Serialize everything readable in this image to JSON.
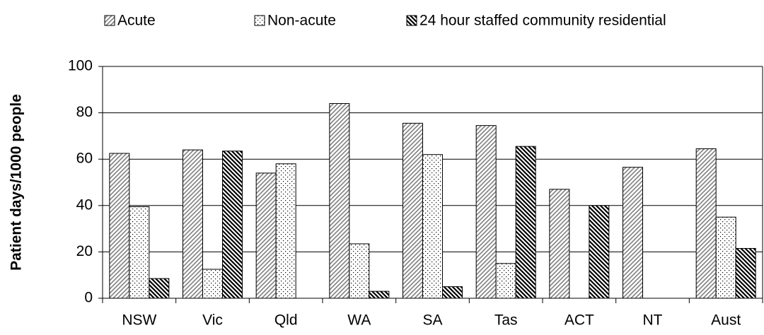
{
  "chart_data": {
    "type": "bar",
    "y_label": "Patient days/1000 people",
    "categories": [
      "NSW",
      "Vic",
      "Qld",
      "WA",
      "SA",
      "Tas",
      "ACT",
      "NT",
      "Aust"
    ],
    "series": [
      {
        "name": "Acute",
        "color": "#808080",
        "pattern": "diagonal",
        "values": [
          62.5,
          64,
          54,
          84,
          75.5,
          74.5,
          47,
          56.5,
          64.5
        ]
      },
      {
        "name": "Non-acute",
        "color": "#000000",
        "pattern": "dots",
        "values": [
          39.5,
          12.5,
          58,
          23.5,
          62,
          15,
          null,
          null,
          35
        ]
      },
      {
        "name": "24 hour staffed community residential",
        "color": "#000000",
        "pattern": "dense-diagonal",
        "values": [
          8.5,
          63.5,
          null,
          3,
          5,
          65.5,
          40,
          null,
          21.5
        ]
      }
    ],
    "ylim": [
      0,
      100
    ],
    "yticks": [
      0,
      20,
      40,
      60,
      80,
      100
    ],
    "grid": true
  }
}
